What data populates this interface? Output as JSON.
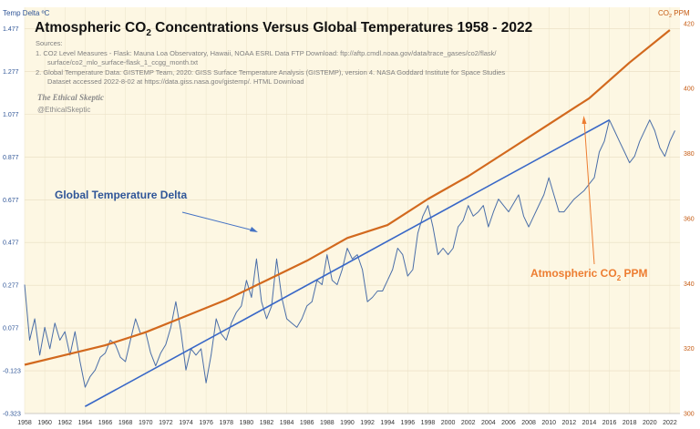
{
  "chart_data": {
    "type": "line",
    "title_parts": [
      "Atmospheric CO",
      "2",
      " Concentrations Versus Global Temperatures 1958 - 2022"
    ],
    "sources": [
      "Sources:",
      "1.  CO2 Level Measures - Flask: Mauna Loa Observatory, Hawaii, NOAA ESRL Data FTP Download: ftp://aftp.cmdl.noaa.gov/data/trace_gases/co2/flask/",
      "surface/co2_mlo_surface-flask_1_ccgg_month.txt",
      "2.  Global Temperature Data:  GISTEMP Team, 2020:  GISS Surface Temperature Analysis (GISTEMP), version 4. NASA Goddard Institute for Space Studies",
      "Dataset accessed 2022-8-02  at https://data.giss.nasa.gov/gistemp/. HTML Download"
    ],
    "watermark": [
      "The Ethical Skeptic",
      "@EthicalSkeptic"
    ],
    "left_axis": {
      "label": "Temp Delta ºC",
      "range": [
        -0.323,
        1.577
      ],
      "ticks": [
        "-0.323",
        "-0.123",
        "0.077",
        "0.277",
        "0.477",
        "0.677",
        "0.877",
        "1.077",
        "1.277",
        "1.477"
      ],
      "color": "#2f5597"
    },
    "right_axis": {
      "label_parts": [
        "CO",
        "2",
        " PPM"
      ],
      "range": [
        300,
        425
      ],
      "ticks": [
        "300",
        "320",
        "340",
        "360",
        "380",
        "400",
        "420"
      ],
      "color": "#c55a11"
    },
    "x_range": [
      1958,
      2023
    ],
    "x_ticks": [
      "1958",
      "1960",
      "1962",
      "1964",
      "1966",
      "1968",
      "1970",
      "1972",
      "1974",
      "1976",
      "1978",
      "1980",
      "1982",
      "1984",
      "1986",
      "1988",
      "1990",
      "1992",
      "1994",
      "1996",
      "1998",
      "2000",
      "2002",
      "2004",
      "2006",
      "2008",
      "2010",
      "2012",
      "2014",
      "2016",
      "2018",
      "2020",
      "2022"
    ],
    "grid": true,
    "series": [
      {
        "name": "Global Temperature  Delta",
        "axis": "left",
        "color": "#4a6ea8",
        "x": [
          1958.0,
          1958.5,
          1959.0,
          1959.5,
          1960.0,
          1960.5,
          1961.0,
          1961.5,
          1962.0,
          1962.5,
          1963.0,
          1963.5,
          1964.0,
          1964.5,
          1965.0,
          1965.5,
          1966.0,
          1966.5,
          1967.0,
          1967.5,
          1968.0,
          1968.5,
          1969.0,
          1969.5,
          1970.0,
          1970.5,
          1971.0,
          1971.5,
          1972.0,
          1972.5,
          1973.0,
          1973.5,
          1974.0,
          1974.5,
          1975.0,
          1975.5,
          1976.0,
          1976.5,
          1977.0,
          1977.5,
          1978.0,
          1978.5,
          1979.0,
          1979.5,
          1980.0,
          1980.5,
          1981.0,
          1981.5,
          1982.0,
          1982.5,
          1983.0,
          1983.5,
          1984.0,
          1984.5,
          1985.0,
          1985.5,
          1986.0,
          1986.5,
          1987.0,
          1987.5,
          1988.0,
          1988.5,
          1989.0,
          1989.5,
          1990.0,
          1990.5,
          1991.0,
          1991.5,
          1992.0,
          1992.5,
          1993.0,
          1993.5,
          1994.0,
          1994.5,
          1995.0,
          1995.5,
          1996.0,
          1996.5,
          1997.0,
          1997.5,
          1998.0,
          1998.5,
          1999.0,
          1999.5,
          2000.0,
          2000.5,
          2001.0,
          2001.5,
          2002.0,
          2002.5,
          2003.0,
          2003.5,
          2004.0,
          2004.5,
          2005.0,
          2005.5,
          2006.0,
          2006.5,
          2007.0,
          2007.5,
          2008.0,
          2008.5,
          2009.0,
          2009.5,
          2010.0,
          2010.5,
          2011.0,
          2011.5,
          2012.0,
          2012.5,
          2013.0,
          2013.5,
          2014.0,
          2014.5,
          2015.0,
          2015.5,
          2016.0,
          2016.5,
          2017.0,
          2017.5,
          2018.0,
          2018.5,
          2019.0,
          2019.5,
          2020.0,
          2020.5,
          2021.0,
          2021.5,
          2022.0,
          2022.5
        ],
        "values": [
          0.28,
          0.02,
          0.12,
          -0.05,
          0.08,
          -0.02,
          0.1,
          0.02,
          0.06,
          -0.05,
          0.06,
          -0.08,
          -0.2,
          -0.15,
          -0.12,
          -0.06,
          -0.04,
          0.02,
          0.0,
          -0.06,
          -0.08,
          0.02,
          0.12,
          0.05,
          0.06,
          -0.04,
          -0.1,
          -0.04,
          0.0,
          0.08,
          0.2,
          0.06,
          -0.12,
          -0.02,
          -0.05,
          -0.02,
          -0.18,
          -0.05,
          0.12,
          0.05,
          0.02,
          0.1,
          0.15,
          0.18,
          0.3,
          0.22,
          0.4,
          0.2,
          0.12,
          0.18,
          0.4,
          0.22,
          0.12,
          0.1,
          0.08,
          0.12,
          0.18,
          0.2,
          0.3,
          0.28,
          0.42,
          0.3,
          0.28,
          0.35,
          0.45,
          0.4,
          0.42,
          0.35,
          0.2,
          0.22,
          0.25,
          0.25,
          0.3,
          0.35,
          0.45,
          0.42,
          0.32,
          0.35,
          0.52,
          0.6,
          0.65,
          0.55,
          0.42,
          0.45,
          0.42,
          0.45,
          0.55,
          0.58,
          0.65,
          0.6,
          0.62,
          0.65,
          0.55,
          0.62,
          0.68,
          0.65,
          0.62,
          0.66,
          0.7,
          0.6,
          0.55,
          0.6,
          0.65,
          0.7,
          0.78,
          0.7,
          0.62,
          0.62,
          0.65,
          0.68,
          0.7,
          0.72,
          0.75,
          0.78,
          0.9,
          0.95,
          1.05,
          1.0,
          0.95,
          0.9,
          0.85,
          0.88,
          0.95,
          1.0,
          1.05,
          1.0,
          0.92,
          0.88,
          0.95,
          1.0
        ]
      },
      {
        "name": "Atmospheric CO2 PPM",
        "axis": "right",
        "color": "#d2691e",
        "x": [
          1958.0,
          1962.0,
          1966.0,
          1970.0,
          1974.0,
          1978.0,
          1982.0,
          1986.0,
          1990.0,
          1994.0,
          1998.0,
          2002.0,
          2006.0,
          2010.0,
          2014.0,
          2018.0,
          2022.0
        ],
        "values": [
          315.0,
          318.0,
          321.0,
          325.0,
          330.0,
          335.0,
          341.0,
          347.0,
          354.0,
          358.0,
          366.0,
          373.0,
          381.0,
          389.0,
          397.0,
          408.0,
          418.0
        ]
      }
    ],
    "trendline": {
      "x": [
        1964.0,
        2016.0
      ],
      "values": [
        -0.29,
        1.05
      ],
      "axis": "left",
      "color": "#3867c7"
    },
    "annotations": [
      {
        "text": "Global Temperature  Delta",
        "color": "#2f5597"
      },
      {
        "text_parts": [
          "Atmospheric CO",
          "2",
          " PPM"
        ],
        "color": "#ed7d31"
      }
    ]
  }
}
